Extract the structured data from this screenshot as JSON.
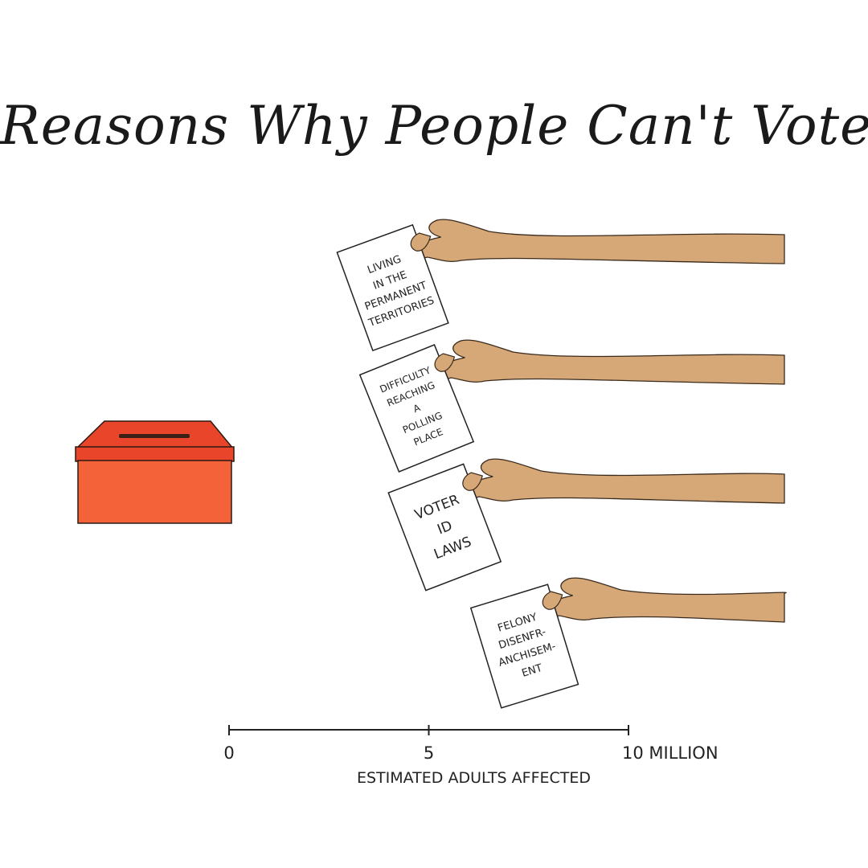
{
  "chart_data": {
    "type": "bar",
    "title": "Reasons Why People Can't Vote",
    "xlabel": "ESTIMATED ADULTS AFFECTED",
    "x_unit": "MILLION",
    "xlim": [
      0,
      10
    ],
    "x_ticks": [
      {
        "value": 0,
        "label": "0"
      },
      {
        "value": 5,
        "label": "5"
      },
      {
        "value": 10,
        "label": "10 MILLION"
      }
    ],
    "grid": false,
    "categories": [
      [
        "LIVING",
        "IN THE",
        "PERMANENT",
        "TERRITORIES"
      ],
      [
        "DIFFICULTY",
        "REACHING",
        "A",
        "POLLING",
        "PLACE"
      ],
      [
        "VOTER",
        "ID",
        "LAWS"
      ],
      [
        "FELONY",
        "DISENFR-",
        "ANCHISEM-",
        "ENT"
      ]
    ],
    "values": [
      4.6,
      5.2,
      5.9,
      7.9
    ]
  },
  "colors": {
    "skin": "#d6a878",
    "skin_outline": "#3a2a1c",
    "ballot_box_front": "#f4623a",
    "ballot_box_lid": "#e8452a",
    "ink": "#222222"
  }
}
